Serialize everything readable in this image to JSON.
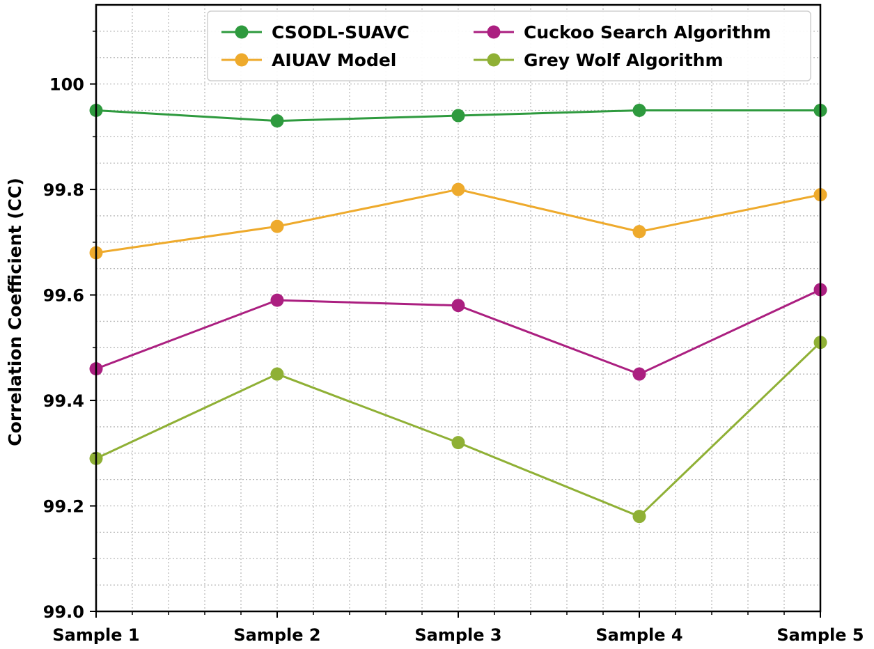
{
  "chart_data": {
    "type": "line",
    "title": "",
    "xlabel": "",
    "ylabel": "Correlation Coefficient (CC)",
    "categories": [
      "Sample 1",
      "Sample 2",
      "Sample 3",
      "Sample 4",
      "Sample 5"
    ],
    "ylim": [
      99.0,
      100.15
    ],
    "yticks": [
      "99.0",
      "99.2",
      "99.4",
      "99.6",
      "99.8",
      "100"
    ],
    "grid": true,
    "legend_position": "top",
    "series": [
      {
        "name": "CSODL-SUAVC",
        "color": "#2e9a3e",
        "values": [
          99.95,
          99.93,
          99.94,
          99.95,
          99.95
        ]
      },
      {
        "name": "AIUAV Model",
        "color": "#eeaa2c",
        "values": [
          99.68,
          99.73,
          99.8,
          99.72,
          99.79
        ]
      },
      {
        "name": "Cuckoo Search Algorithm",
        "color": "#ab1f80",
        "values": [
          99.46,
          99.59,
          99.58,
          99.45,
          99.61
        ]
      },
      {
        "name": "Grey Wolf Algorithm",
        "color": "#8fb035",
        "values": [
          99.29,
          99.45,
          99.32,
          99.18,
          99.51
        ]
      }
    ]
  }
}
